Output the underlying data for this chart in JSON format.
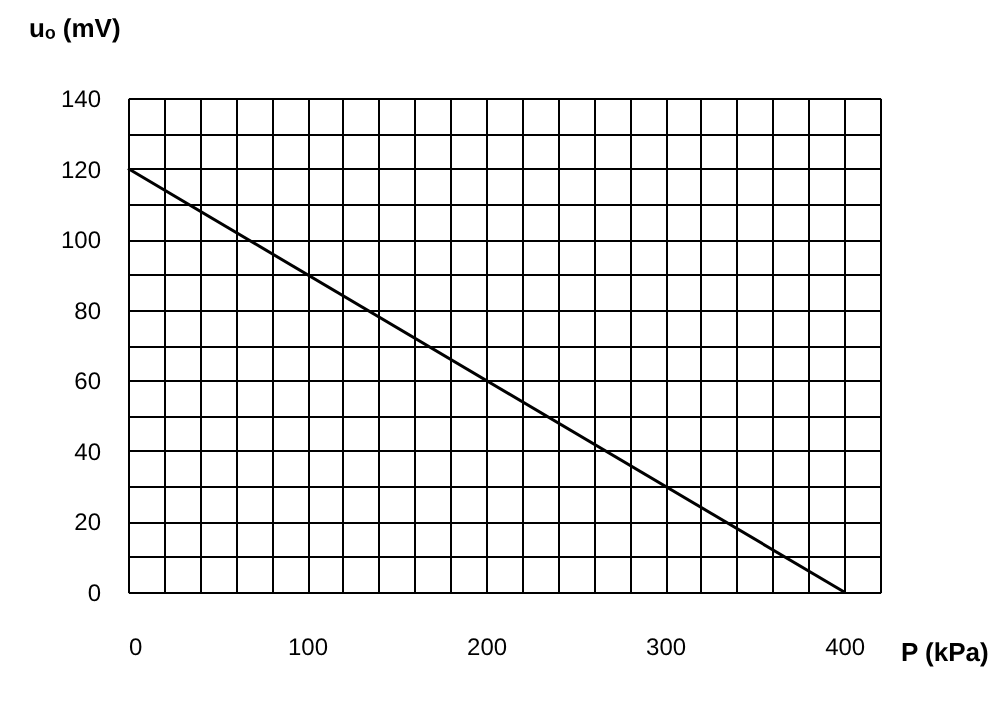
{
  "chart_data": {
    "type": "line",
    "xlabel": "P (kPa)",
    "ylabel": "uₒ (mV)",
    "x": [
      0,
      400
    ],
    "series": [
      {
        "color": "#000000",
        "values": [
          120,
          0
        ]
      }
    ],
    "xlim": [
      0,
      420
    ],
    "ylim": [
      0,
      140
    ],
    "xticks": [
      0,
      {
        "value": 20,
        "label": null
      },
      {
        "value": 40,
        "label": null
      },
      {
        "value": 60,
        "label": null
      },
      {
        "value": 80,
        "label": null
      },
      100,
      {
        "value": 120,
        "label": null
      },
      {
        "value": 140,
        "label": null
      },
      {
        "value": 160,
        "label": null
      },
      {
        "value": 180,
        "label": null
      },
      200,
      {
        "value": 220,
        "label": null
      },
      {
        "value": 240,
        "label": null
      },
      {
        "value": 260,
        "label": null
      },
      {
        "value": 280,
        "label": null
      },
      300,
      {
        "value": 320,
        "label": null
      },
      {
        "value": 340,
        "label": null
      },
      {
        "value": 360,
        "label": null
      },
      {
        "value": 380,
        "label": null
      },
      400,
      {
        "value": 420,
        "label": null
      }
    ],
    "yticks": [
      0,
      {
        "value": 10,
        "label": null
      },
      20,
      {
        "value": 30,
        "label": null
      },
      40,
      {
        "value": 50,
        "label": null
      },
      60,
      {
        "value": 70,
        "label": null
      },
      80,
      {
        "value": 90,
        "label": null
      },
      100,
      {
        "value": 110,
        "label": null
      },
      120,
      {
        "value": 130,
        "label": null
      },
      140
    ],
    "grid": true
  }
}
